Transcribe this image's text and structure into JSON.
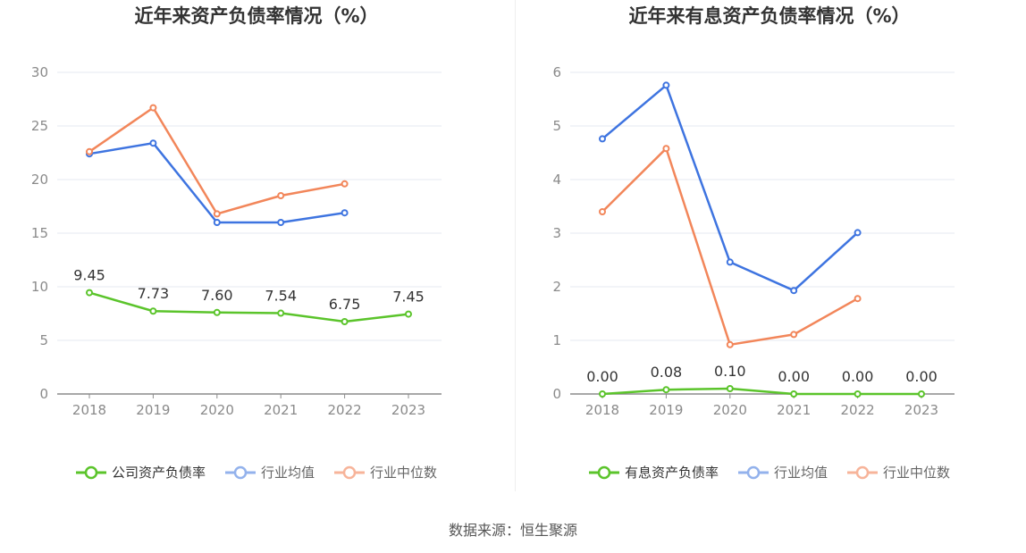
{
  "source": "数据来源：恒生聚源",
  "chart_data": [
    {
      "type": "line",
      "title": "近年来资产负债率情况（%）",
      "categories": [
        "2018",
        "2019",
        "2020",
        "2021",
        "2022",
        "2023"
      ],
      "ylim": [
        0,
        30
      ],
      "yticks": [
        0,
        5,
        10,
        15,
        20,
        25,
        30
      ],
      "series": [
        {
          "name": "公司资产负债率",
          "color": "#5bc42b",
          "labels": true,
          "values": [
            9.45,
            7.73,
            7.6,
            7.54,
            6.75,
            7.45
          ],
          "value_labels": [
            "9.45",
            "7.73",
            "7.60",
            "7.54",
            "6.75",
            "7.45"
          ]
        },
        {
          "name": "行业均值",
          "color": "#3e74e0",
          "labels": false,
          "values": [
            22.4,
            23.4,
            16.0,
            16.0,
            16.9,
            null
          ]
        },
        {
          "name": "行业中位数",
          "color": "#f2865a",
          "labels": false,
          "values": [
            22.6,
            26.7,
            16.8,
            18.5,
            19.6,
            null
          ]
        }
      ]
    },
    {
      "type": "line",
      "title": "近年来有息资产负债率情况（%）",
      "categories": [
        "2018",
        "2019",
        "2020",
        "2021",
        "2022",
        "2023"
      ],
      "ylim": [
        0,
        6
      ],
      "yticks": [
        0,
        1,
        2,
        3,
        4,
        5,
        6
      ],
      "series": [
        {
          "name": "有息资产负债率",
          "color": "#5bc42b",
          "labels": true,
          "values": [
            0.0,
            0.08,
            0.1,
            0.0,
            0.0,
            0.0
          ],
          "value_labels": [
            "0.00",
            "0.08",
            "0.10",
            "0.00",
            "0.00",
            "0.00"
          ]
        },
        {
          "name": "行业均值",
          "color": "#3e74e0",
          "labels": false,
          "values": [
            4.76,
            5.76,
            2.46,
            1.93,
            3.01,
            null
          ]
        },
        {
          "name": "行业中位数",
          "color": "#f2865a",
          "labels": false,
          "values": [
            3.4,
            4.58,
            0.92,
            1.11,
            1.78,
            null
          ]
        }
      ]
    }
  ]
}
